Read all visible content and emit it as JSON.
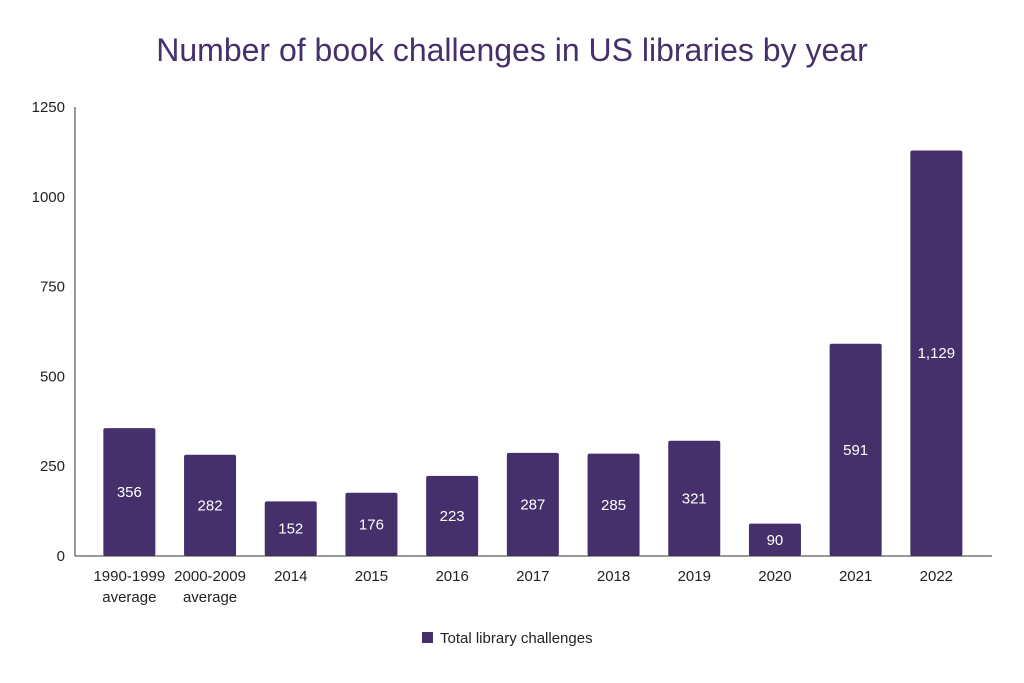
{
  "chart_data": {
    "type": "bar",
    "title": "Number of book challenges in US libraries by year",
    "xlabel": "",
    "ylabel": "",
    "categories": [
      [
        "1990-1999",
        "average"
      ],
      [
        "2000-2009",
        "average"
      ],
      [
        "2014"
      ],
      [
        "2015"
      ],
      [
        "2016"
      ],
      [
        "2017"
      ],
      [
        "2018"
      ],
      [
        "2019"
      ],
      [
        "2020"
      ],
      [
        "2021"
      ],
      [
        "2022"
      ]
    ],
    "series": [
      {
        "name": "Total library challenges",
        "values": [
          356,
          282,
          152,
          176,
          223,
          287,
          285,
          321,
          90,
          591,
          1129
        ],
        "labels": [
          "356",
          "282",
          "152",
          "176",
          "223",
          "287",
          "285",
          "321",
          "90",
          "591",
          "1,129"
        ]
      }
    ],
    "ylim": [
      0,
      1250
    ],
    "yticks": [
      0,
      250,
      500,
      750,
      1000,
      1250
    ],
    "grid": false,
    "legend_position": "bottom",
    "colors": {
      "bar": "#45306b",
      "title": "#45306b",
      "axis": "#333333",
      "bar_label": "#ffffff",
      "tick_label": "#222222"
    }
  }
}
